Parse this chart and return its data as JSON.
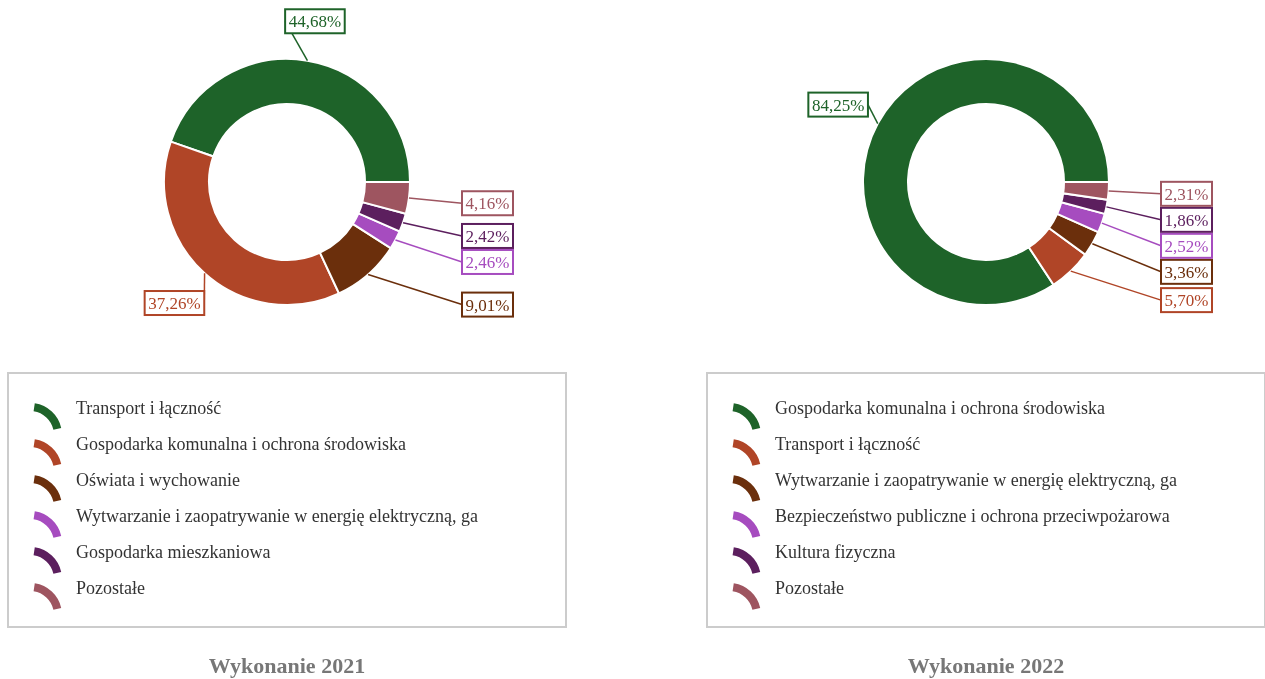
{
  "chart_data": [
    {
      "type": "donut",
      "title": "Wykonanie 2021",
      "legend": "bottom",
      "categories": [
        "Transport i łączność",
        "Gospodarka komunalna i ochrona środowiska",
        "Oświata i wychowanie",
        "Wytwarzanie i zaopatrywanie w energię elektryczną, ga",
        "Gospodarka mieszkaniowa",
        "Pozostałe"
      ],
      "values": [
        44.68,
        37.26,
        9.01,
        2.46,
        2.42,
        4.16
      ],
      "value_labels": [
        "44,68%",
        "37,26%",
        "9,01%",
        "2,46%",
        "2,42%",
        "4,16%"
      ],
      "colors": [
        "#1e6329",
        "#b04527",
        "#6b2f0c",
        "#a64cbf",
        "#5c1f5e",
        "#9e5560"
      ]
    },
    {
      "type": "donut",
      "title": "Wykonanie 2022",
      "legend": "bottom",
      "categories": [
        "Gospodarka komunalna i ochrona środowiska",
        "Transport i łączność",
        "Wytwarzanie i zaopatrywanie w energię elektryczną, ga",
        "Bezpieczeństwo publiczne i ochrona przeciwpożarowa",
        "Kultura fizyczna",
        "Pozostałe"
      ],
      "values": [
        84.25,
        5.7,
        3.36,
        2.52,
        1.86,
        2.31
      ],
      "value_labels": [
        "84,25%",
        "5,70%",
        "3,36%",
        "2,52%",
        "1,86%",
        "2,31%"
      ],
      "colors": [
        "#1e6329",
        "#b04527",
        "#6b2f0c",
        "#a64cbf",
        "#5c1f5e",
        "#9e5560"
      ]
    }
  ]
}
